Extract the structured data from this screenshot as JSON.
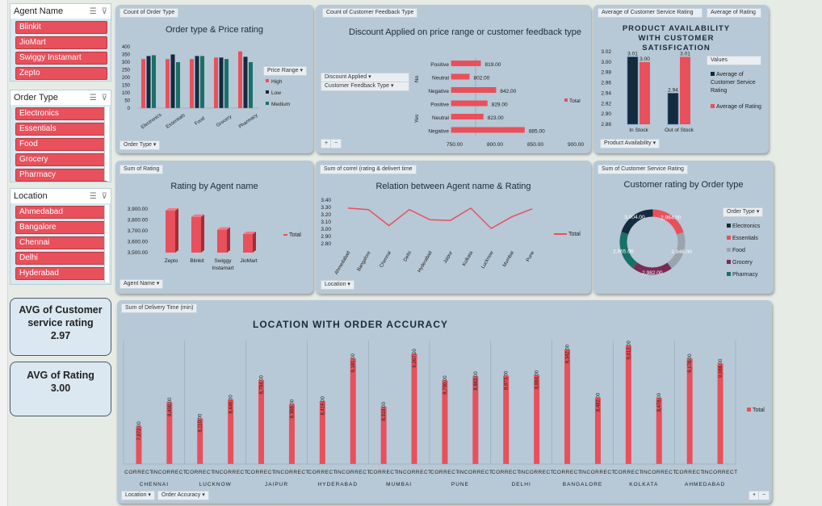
{
  "colors": {
    "red": "#e8505b",
    "dark": "#142a3f",
    "teal": "#1a7068",
    "grey": "#9aa4ad",
    "purple": "#7a2b55"
  },
  "slicers": {
    "agent": {
      "title": "Agent Name",
      "items": [
        "Blinkit",
        "JioMart",
        "Swiggy Instamart",
        "Zepto"
      ]
    },
    "order": {
      "title": "Order Type",
      "items": [
        "Electronics",
        "Essentials",
        "Food",
        "Grocery",
        "Pharmacy"
      ]
    },
    "location": {
      "title": "Location",
      "items": [
        "Ahmedabad",
        "Bangalore",
        "Chennai",
        "Delhi",
        "Hyderabad"
      ]
    }
  },
  "kpis": {
    "csr": {
      "label": "AVG of Customer service rating",
      "value": "2.97"
    },
    "rating": {
      "label": "AVG of Rating",
      "value": "3.00"
    }
  },
  "p1": {
    "btn": "Count of Order Type",
    "title": "Order type & Price rating",
    "filter": "Order Type",
    "legend_title": "Price Range",
    "legend": [
      "High",
      "Low",
      "Medium"
    ]
  },
  "p2": {
    "btn": "Count of Customer Feedback Type",
    "title": "Discount Applied on price range or customer feedback type",
    "f1": "Discount Applied",
    "f2": "Customer Feedback Type",
    "legend": "Total",
    "g_no": "No",
    "g_yes": "Yes",
    "plus": "+",
    "minus": "−"
  },
  "p3": {
    "btn1": "Average of Customer Service Rating",
    "btn2": "Average of Rating",
    "title": "PRODUCT AVAILABILITY WITH CUSTOMER SATISFICATION",
    "values_btn": "Values",
    "legend": [
      "Average of Customer Service Rating",
      "Average of Rating"
    ],
    "filter": "Product Availability"
  },
  "p4": {
    "btn": "Sum of Rating",
    "title": "Rating by Agent name",
    "filter": "Agent Name",
    "legend": "Total"
  },
  "p5": {
    "btn": "Sum of correl (rating & delivert time",
    "title": "Relation between Agent name & Rating",
    "filter": "Location",
    "legend": "Total"
  },
  "p6": {
    "btn": "Sum of Customer Service Rating",
    "title": "Customer rating by Order type",
    "filter": "Order Type",
    "legend": [
      "Electronics",
      "Essentials",
      "Food",
      "Grocery",
      "Pharmacy"
    ]
  },
  "p7": {
    "btn": "Sum of Delivery Time (min)",
    "title": "LOCATION WITH ORDER ACCURACY",
    "f1": "Location",
    "f2": "Order Accuracy",
    "legend": "Total",
    "plus": "+",
    "minus": "−"
  },
  "chart_data": [
    {
      "type": "bar",
      "title": "Order type & Price rating",
      "categories": [
        "Electronics",
        "Essentials",
        "Food",
        "Grocery",
        "Pharmacy"
      ],
      "ylim": [
        0,
        400
      ],
      "yticks": [
        "400",
        "350",
        "300",
        "250",
        "200",
        "150",
        "100",
        "50",
        "0"
      ],
      "series": [
        {
          "name": "High",
          "values": [
            320,
            320,
            320,
            330,
            370
          ]
        },
        {
          "name": "Low",
          "values": [
            340,
            350,
            340,
            330,
            335
          ]
        },
        {
          "name": "Medium",
          "values": [
            345,
            300,
            340,
            320,
            300
          ]
        }
      ]
    },
    {
      "type": "bar",
      "title": "Discount Applied on price range or customer feedback type",
      "categories": [
        "Positive",
        "Neutral",
        "Negative",
        "Positive",
        "Neutral",
        "Negative"
      ],
      "groups": [
        "No",
        "No",
        "No",
        "Yes",
        "Yes",
        "Yes"
      ],
      "values": [
        819,
        802,
        842,
        829,
        823,
        885
      ],
      "labels": [
        "819.00",
        "802.00",
        "842.00",
        "829.00",
        "823.00",
        "885.00"
      ],
      "xlim": [
        750,
        900
      ],
      "xticks": [
        "750.00",
        "800.00",
        "850.00",
        "900.00"
      ]
    },
    {
      "type": "bar",
      "title": "PRODUCT AVAILABILITY WITH CUSTOMER SATISFICATION",
      "categories": [
        "In Stock",
        "Out of Stock"
      ],
      "ylim": [
        2.88,
        3.02
      ],
      "yticks": [
        "3.02",
        "3.00",
        "2.98",
        "2.96",
        "2.94",
        "2.92",
        "2.90",
        "2.88"
      ],
      "series": [
        {
          "name": "Average of Customer Service Rating",
          "values": [
            3.01,
            2.94
          ],
          "labels": [
            "3.01",
            "2.94"
          ]
        },
        {
          "name": "Average of Rating",
          "values": [
            3.0,
            3.01
          ],
          "labels": [
            "3.00",
            "3.01"
          ]
        }
      ]
    },
    {
      "type": "bar",
      "title": "Rating by Agent name",
      "categories": [
        "Zepto",
        "Blinkit",
        "Swiggy Instamart",
        "JioMart"
      ],
      "values": [
        3885,
        3828,
        3710,
        3670
      ],
      "ylim": [
        3500,
        3900
      ],
      "yticks": [
        "3,900.00",
        "3,800.00",
        "3,700.00",
        "3,600.00",
        "3,500.00"
      ]
    },
    {
      "type": "line",
      "title": "Relation between Agent name & Rating",
      "categories": [
        "Ahmedabad",
        "Bangalore",
        "Chennai",
        "Delhi",
        "Hyderabad",
        "Jaipur",
        "Kolkata",
        "Lucknow",
        "Mumbai",
        "Pune"
      ],
      "values": [
        3.29,
        3.27,
        3.05,
        3.27,
        3.13,
        3.12,
        3.29,
        3.01,
        3.17,
        3.28
      ],
      "ylim": [
        2.8,
        3.4
      ],
      "yticks": [
        "3.40",
        "3.30",
        "3.20",
        "3.10",
        "3.00",
        "2.90",
        "2.80"
      ]
    },
    {
      "type": "pie",
      "title": "Customer rating by Order type",
      "categories": [
        "Electronics",
        "Essentials",
        "Food",
        "Grocery",
        "Pharmacy"
      ],
      "values": [
        3004,
        2964,
        2946,
        2982,
        2965
      ],
      "labels": [
        "3,004.00",
        "2,964.00",
        "2,946.00",
        "2,982.00",
        "2,965.00"
      ]
    },
    {
      "type": "bar",
      "title": "LOCATION WITH ORDER ACCURACY",
      "locations": [
        "CHENNAI",
        "LUCKNOW",
        "JAIPUR",
        "HYDERABAD",
        "MUMBAI",
        "PUNE",
        "DELHI",
        "BANGALORE",
        "KOLKATA",
        "AHMEDABAD"
      ],
      "subcategories": [
        "CORRECT",
        "INCORRECT"
      ],
      "values": [
        7972,
        8400,
        8110,
        8446,
        8794,
        8366,
        8419,
        9181,
        8319,
        9267,
        8790,
        8863,
        8873,
        8884,
        9342,
        8482,
        9412,
        8478,
        9178,
        9088
      ],
      "labels": [
        "7,972.00",
        "8,400.00",
        "8,110.00",
        "8,446.00",
        "8,794.00",
        "8,366.00",
        "8,419.00",
        "9,181.00",
        "8,319.00",
        "9,267.00",
        "8,790.00",
        "8,863.00",
        "8,873.00",
        "8,884.00",
        "9,342.00",
        "8,482.00",
        "9,412.00",
        "8,478.00",
        "9,178.00",
        "9,088.00"
      ],
      "ylim": [
        7300,
        9500
      ]
    }
  ]
}
